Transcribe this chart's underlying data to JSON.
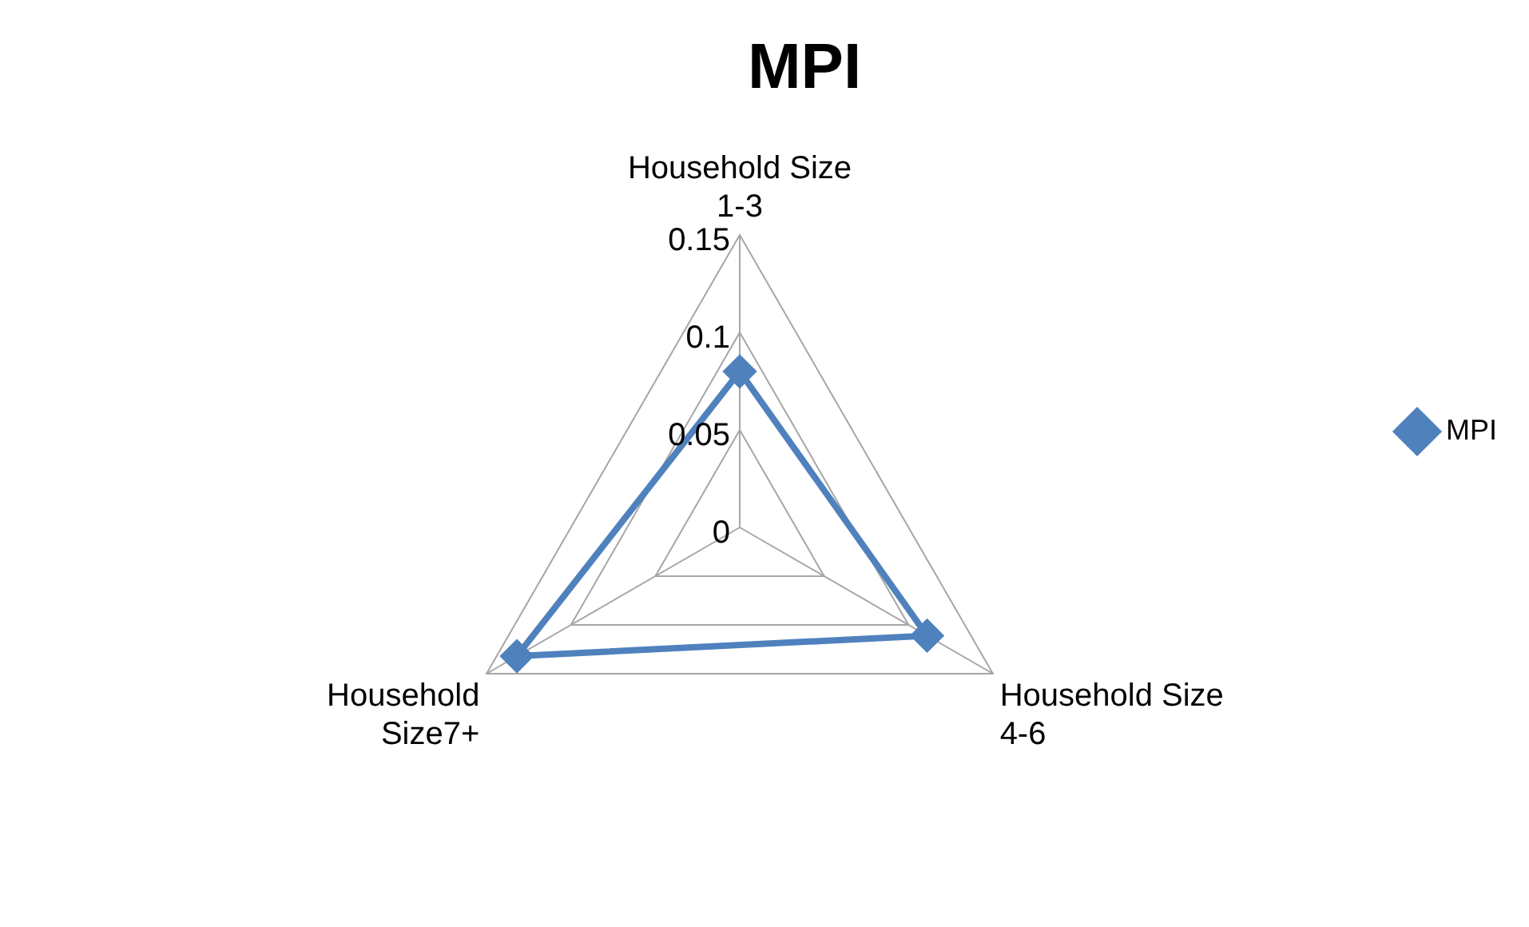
{
  "chart_data": {
    "type": "radar",
    "title": "MPI",
    "categories": [
      "Household Size 1-3",
      "Household Size 4-6",
      "Household Size7+"
    ],
    "series": [
      {
        "name": "MPI",
        "color": "#4f81bd",
        "values": [
          0.08,
          0.111,
          0.132
        ]
      }
    ],
    "ylim": [
      0,
      0.15
    ],
    "yticks": [
      0,
      0.05,
      0.1,
      0.15
    ],
    "grid": true,
    "legend": "right",
    "marker": "diamond",
    "line_style": "solid"
  }
}
